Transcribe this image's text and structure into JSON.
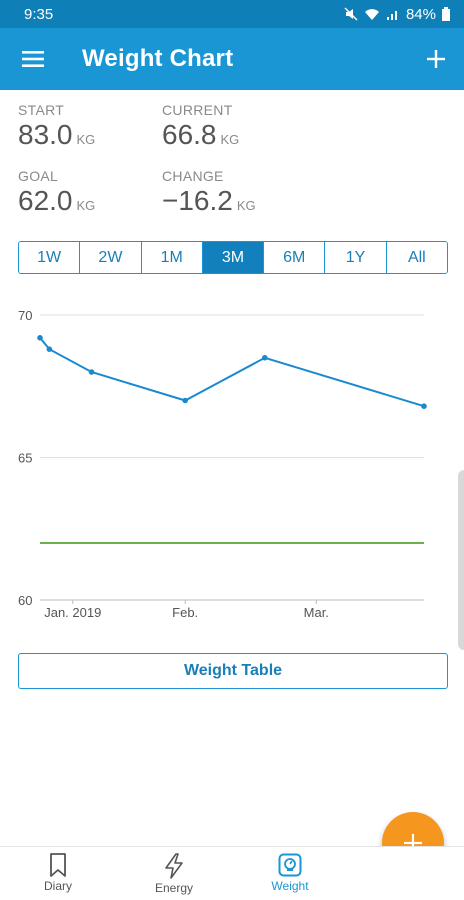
{
  "status_bar": {
    "time": "9:35",
    "battery": "84%"
  },
  "app_bar": {
    "title": "Weight Chart",
    "add_icon": "plus-icon",
    "menu_icon": "hamburger-icon"
  },
  "stats": {
    "start": {
      "label": "START",
      "value": "83.0",
      "unit": "KG"
    },
    "current": {
      "label": "CURRENT",
      "value": "66.8",
      "unit": "KG"
    },
    "goal": {
      "label": "GOAL",
      "value": "62.0",
      "unit": "KG"
    },
    "change": {
      "label": "CHANGE",
      "value": "−16.2",
      "unit": "KG"
    }
  },
  "range_tabs": [
    "1W",
    "2W",
    "1M",
    "3M",
    "6M",
    "1Y",
    "All"
  ],
  "active_range": "3M",
  "chart_data": {
    "type": "line",
    "y_ticks": [
      "70",
      "65",
      "60"
    ],
    "ylim": [
      60,
      70
    ],
    "x_ticks": [
      "Jan. 2019",
      "Feb.",
      "Mar."
    ],
    "series": [
      {
        "color": "#1a8ad0",
        "points": [
          {
            "x": "2019-01-01",
            "y": 69.2
          },
          {
            "x": "2019-01-03",
            "y": 68.8
          },
          {
            "x": "2019-01-12",
            "y": 68.0
          },
          {
            "x": "2019-02-01",
            "y": 67.0
          },
          {
            "x": "2019-02-18",
            "y": 68.5
          },
          {
            "x": "2019-03-24",
            "y": 66.8
          }
        ]
      },
      {
        "color": "#6ab04c",
        "points": [
          {
            "x": "2019-01-01",
            "y": 62.0
          },
          {
            "x": "2019-03-24",
            "y": 62.0
          }
        ]
      }
    ],
    "x_tick_dates": [
      "2019-01-08",
      "2019-02-01",
      "2019-03-01"
    ],
    "x_range": [
      "2019-01-01",
      "2019-03-24"
    ],
    "grid": true
  },
  "weight_table_label": "Weight Table",
  "fab_icon": "plus-icon",
  "bottom_nav": [
    {
      "label": "Diary",
      "icon": "bookmark-icon"
    },
    {
      "label": "Energy",
      "icon": "lightning-icon"
    },
    {
      "label": "Weight",
      "icon": "scale-icon"
    }
  ],
  "active_nav": "Weight"
}
